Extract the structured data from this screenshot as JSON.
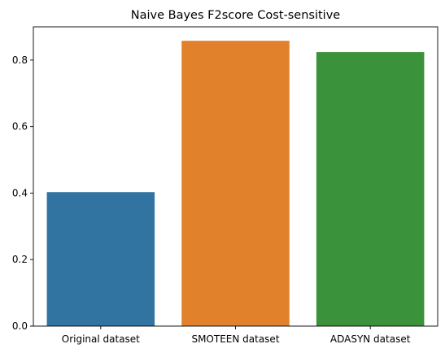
{
  "chart_data": {
    "type": "bar",
    "title": "Naive Bayes F2score Cost-sensitive",
    "xlabel": "",
    "ylabel": "",
    "categories": [
      "Original dataset",
      "SMOTEEN dataset",
      "ADASYN dataset"
    ],
    "values": [
      0.403,
      0.858,
      0.824
    ],
    "colors": [
      "#3274a1",
      "#e1812c",
      "#3a923a"
    ],
    "ylim": [
      0,
      0.9
    ],
    "yticks": [
      0.0,
      0.2,
      0.4,
      0.6,
      0.8
    ],
    "ytick_labels": [
      "0.0",
      "0.2",
      "0.4",
      "0.6",
      "0.8"
    ],
    "grid": false,
    "legend": "none"
  }
}
